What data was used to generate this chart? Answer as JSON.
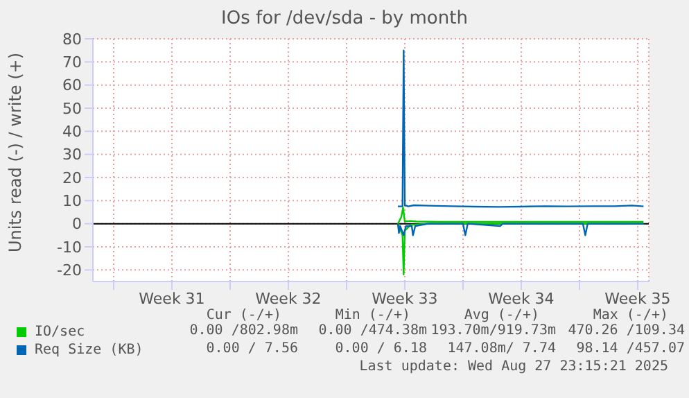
{
  "chart_data": {
    "type": "line",
    "title": "IOs for /dev/sda - by month",
    "ylabel": "Units read (-) / write (+)",
    "xlim": [
      "--07-26T18:00",
      "--08-29T04:00"
    ],
    "xticks": [
      {
        "value": "--07-28T00:00",
        "label": null
      },
      {
        "value": "--07-31T12:00",
        "label": "Week 31"
      },
      {
        "value": "--08-04T00:00",
        "label": null
      },
      {
        "value": "--08-07T12:00",
        "label": "Week 32"
      },
      {
        "value": "--08-11T00:00",
        "label": null
      },
      {
        "value": "--08-14T12:00",
        "label": "Week 33"
      },
      {
        "value": "--08-18T00:00",
        "label": null
      },
      {
        "value": "--08-21T12:00",
        "label": "Week 34"
      },
      {
        "value": "--08-25T00:00",
        "label": null
      },
      {
        "value": "--08-28T12:00",
        "label": "Week 35"
      }
    ],
    "ylim": [
      -25,
      80
    ],
    "yticks": [
      -20,
      -10,
      0,
      10,
      20,
      30,
      40,
      50,
      60,
      70,
      80
    ],
    "grid": true,
    "legend": "bottom left",
    "marker": "none",
    "line_style": "solid",
    "ref_lines": [
      {
        "axis": "y",
        "value": 0,
        "color": "#000000"
      }
    ],
    "series": [
      {
        "name": "IO/sec",
        "color": "#00cc00",
        "x": [
          "--08-14T02:00",
          "--08-14T07:00",
          "--08-14T09:30",
          "--08-14T12:00",
          "--08-14T20:25",
          "--08-15T04:50",
          "--08-16T14:25",
          "--08-18T16:50",
          "--08-21T12:00",
          "--08-25T00:00",
          "--08-28T20:25"
        ],
        "values": [
          0,
          3,
          7,
          1,
          1.2,
          1,
          0.8,
          0.8,
          0.8,
          0.8,
          0.8
        ]
      },
      {
        "color": "#00cc00",
        "x": [
          "--08-14T02:00",
          "--08-14T08:40",
          "--08-14T10:20",
          "--08-14T12:00",
          "--08-14T20:25",
          "--08-15T21:35",
          "--08-28T20:25"
        ],
        "values": [
          0,
          -5,
          -22,
          -3,
          -0.5,
          0,
          0
        ]
      },
      {
        "name": "Req Size (KB)",
        "color": "#0066b3",
        "x": [
          "--08-14T02:00",
          "--08-14T08:40",
          "--08-14T10:20",
          "--08-14T12:00",
          "--08-14T17:00",
          "--08-15T01:25",
          "--08-15T21:35",
          "--08-17T07:10",
          "--08-18T16:50",
          "--08-20T02:25",
          "--08-21T12:00",
          "--08-22T21:35",
          "--08-24T07:10",
          "--08-25T16:50",
          "--08-27T02:25",
          "--08-28T03:35",
          "--08-28T20:25"
        ],
        "values": [
          7.5,
          7.5,
          75,
          8,
          7.5,
          8,
          7.8,
          7.6,
          7.4,
          7.3,
          7.4,
          7.6,
          7.5,
          7.6,
          7.6,
          7.9,
          7.5
        ]
      },
      {
        "color": "#0066b3",
        "x": [
          "--08-14T02:00",
          "--08-14T03:30",
          "--08-14T05:15",
          "--08-14T10:20",
          "--08-14T13:40",
          "--08-14T22:05",
          "--08-14T23:45",
          "--08-15T03:05",
          "--08-15T21:35",
          "--08-18T00:00",
          "--08-18T03:20",
          "--08-18T06:45",
          "--08-20T05:45",
          "--08-20T09:05",
          "--08-25T05:00",
          "--08-25T08:25",
          "--08-25T11:45",
          "--08-28T20:25"
        ],
        "values": [
          0,
          -4,
          -1,
          -5,
          -1,
          -1,
          -5,
          -1,
          0,
          0,
          -5,
          0,
          -1,
          0,
          0,
          -5,
          0,
          0
        ]
      }
    ],
    "annotations": [
      "Cur (-/+)",
      "Min (-/+)",
      "Avg (-/+)",
      "Max (-/+)",
      "0.00 /802.98m",
      "0.00 /474.38m",
      "193.70m/919.73m",
      "470.26 /109.34",
      "0.00 / 7.56",
      "0.00 / 6.18",
      "147.08m/ 7.74",
      "98.14 /457.07",
      "Last update: Wed Aug 27 23:15:21 2025"
    ]
  }
}
